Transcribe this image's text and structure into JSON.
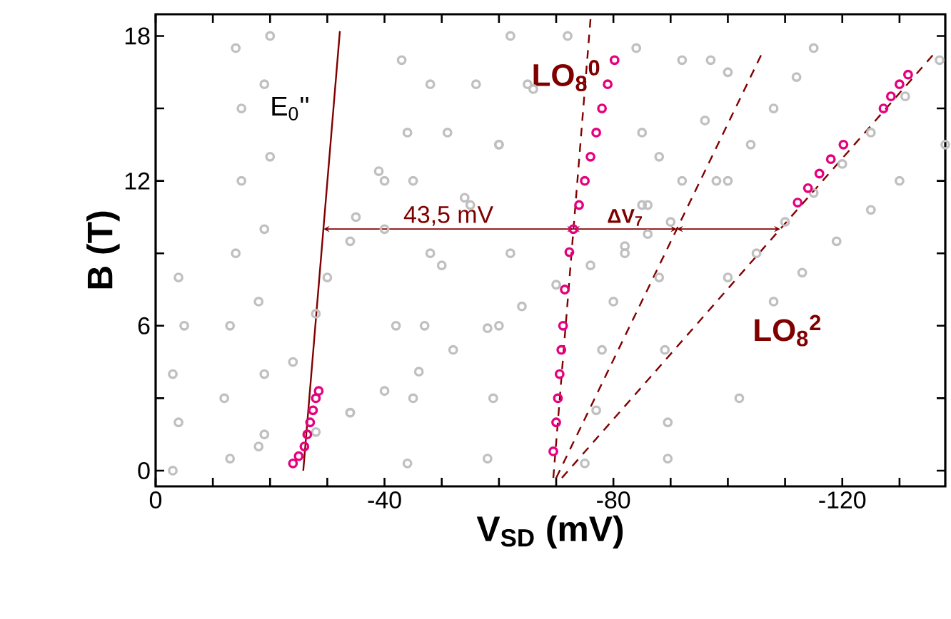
{
  "chart_data": {
    "type": "scatter",
    "xlabel": "V$_{SD}$   (mV)",
    "ylabel": "B  (T)",
    "xlim": [
      0,
      -138
    ],
    "ylim": [
      -0.65,
      18.9
    ],
    "xticks": [
      0,
      {
        "value": -10,
        "label": null
      },
      {
        "value": -20,
        "label": null
      },
      {
        "value": -30,
        "label": null
      },
      -40,
      {
        "value": -50,
        "label": null
      },
      {
        "value": -60,
        "label": null
      },
      {
        "value": -70,
        "label": null
      },
      -80,
      {
        "value": -90,
        "label": null
      },
      {
        "value": -100,
        "label": null
      },
      {
        "value": -110,
        "label": null
      },
      -120,
      {
        "value": -130,
        "label": null
      }
    ],
    "yticks": [
      0,
      {
        "value": 3,
        "label": null
      },
      6,
      {
        "value": 9,
        "label": null
      },
      12,
      {
        "value": 15,
        "label": null
      },
      18
    ],
    "series": [
      {
        "color": "#c0c0c0",
        "marker": "circle",
        "x": [
          -3,
          -4,
          -3,
          -5,
          -4,
          -13,
          -12,
          -13,
          -14,
          -15,
          -15,
          -14,
          -18,
          -19,
          -18,
          -19,
          -20,
          -19,
          -20,
          -19,
          -24,
          -30,
          -35,
          -39,
          -43,
          -28,
          -34,
          -40,
          -44,
          -48,
          -34,
          -42,
          -50,
          -55,
          -60,
          -65,
          -28,
          -34,
          -40,
          -46,
          -52,
          -58,
          -64,
          -70,
          -76,
          -82,
          -86,
          -90,
          -44,
          -45,
          -47,
          -58,
          -59,
          -60,
          -62,
          -48,
          -54,
          -60,
          -66,
          -72,
          -40,
          -45,
          -51,
          -56,
          -62,
          -75,
          -77,
          -78,
          -80,
          -82,
          -85,
          -88,
          -92,
          -84,
          -85,
          -86,
          -88,
          -89,
          -89.5,
          -89.5,
          -97,
          -98,
          -100,
          -102,
          -105,
          -110,
          -115,
          -120,
          -125,
          -131,
          -137,
          -108,
          -113,
          -119,
          -125,
          -130,
          -138,
          -100,
          -104,
          -108,
          -112,
          -115,
          -92,
          -96,
          -100
        ],
        "values": [
          0,
          2,
          4,
          6,
          8,
          0.5,
          3,
          6,
          9,
          12,
          15,
          17.5,
          1,
          4,
          7,
          10,
          13,
          16,
          18,
          1.5,
          4.5,
          8,
          10.5,
          12.4,
          17,
          6.5,
          9.5,
          12,
          14,
          16,
          2.4,
          6,
          8.5,
          11,
          13.5,
          16,
          1.6,
          2.4,
          3.3,
          4.1,
          5,
          5.9,
          6.8,
          7.7,
          8.5,
          9.3,
          9.8,
          10.3,
          0.3,
          3,
          6,
          0.5,
          3,
          6,
          9,
          9,
          11.3,
          13.5,
          15.8,
          18,
          10,
          12,
          14,
          16,
          18,
          0.3,
          2.5,
          5,
          7,
          9,
          11,
          13,
          17,
          17.5,
          14,
          11,
          8,
          5,
          2,
          0.5,
          17,
          12,
          8,
          3,
          9,
          10.3,
          11.5,
          12.7,
          14,
          15.5,
          17,
          7,
          8.2,
          9.5,
          10.8,
          12,
          13.5,
          12,
          13.5,
          15,
          16.3,
          17.5,
          12,
          14.5,
          16.5
        ]
      },
      {
        "color": "#e6007e",
        "marker": "circle",
        "x": [
          -24,
          -25,
          -26,
          -26.5,
          -27,
          -27.5,
          -28,
          -28.5,
          -69.5,
          -70,
          -70.3,
          -70.6,
          -70.9,
          -71.2,
          -71.5,
          -72.3,
          -73,
          -74,
          -75,
          -76,
          -77,
          -78,
          -79,
          -80.2,
          -112.2,
          -114,
          -116,
          -118,
          -120.2,
          -127.2,
          -128.5,
          -130,
          -131.5
        ],
        "values": [
          0.3,
          0.6,
          1,
          1.5,
          2,
          2.5,
          3,
          3.3,
          0.8,
          2,
          3,
          4,
          5,
          6,
          7.5,
          9.05,
          10,
          11,
          12,
          13,
          14,
          15,
          16,
          17,
          11.1,
          11.7,
          12.3,
          12.9,
          13.5,
          15,
          15.5,
          16,
          16.4
        ]
      },
      {
        "type": "line",
        "color": "#800000",
        "marker": "none",
        "line_style": "solid",
        "x": [
          -25.8,
          -32.2
        ],
        "values": [
          0,
          18.2
        ]
      },
      {
        "type": "line",
        "color": "#800000",
        "marker": "none",
        "line_style": "dashed",
        "x": [
          -69.5,
          -76
        ],
        "values": [
          -0.3,
          18.7
        ]
      },
      {
        "type": "line",
        "color": "#800000",
        "marker": "none",
        "line_style": "dashed",
        "x": [
          -70,
          -105.8
        ],
        "values": [
          -0.3,
          17.2
        ]
      },
      {
        "type": "line",
        "color": "#800000",
        "marker": "none",
        "line_style": "dashed",
        "x": [
          -71,
          -135.8
        ],
        "values": [
          -0.3,
          17.2
        ]
      }
    ],
    "annotations": [
      "E$_{0}$''",
      "LO$_{8}$$^{0}$",
      "43,5 mV",
      "ΔV$_{7}$",
      "LO$_{8}$$^{2}$"
    ]
  }
}
